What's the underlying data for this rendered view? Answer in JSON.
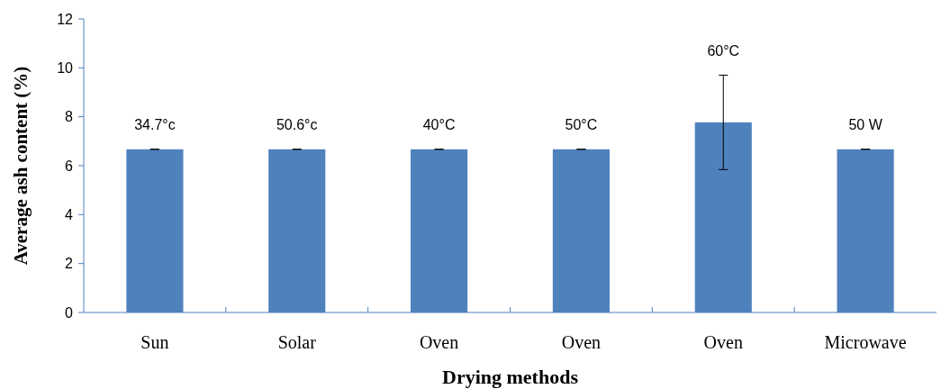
{
  "chart_data": {
    "type": "bar",
    "xlabel": "Drying methods",
    "ylabel": "Average ash content (%)",
    "categories": [
      "Sun",
      "Solar",
      "Oven",
      "Oven",
      "Oven",
      "Microwave"
    ],
    "values": [
      6.67,
      6.67,
      6.67,
      6.67,
      7.77,
      6.67
    ],
    "errors": [
      0,
      0,
      0,
      0,
      1.93,
      0
    ],
    "color": "#4f81bd",
    "ylim": [
      0,
      12
    ],
    "yticks": [
      0,
      2,
      4,
      6,
      8,
      10,
      12
    ],
    "grid": false,
    "annotations": [
      "34.7°c",
      "50.6°c",
      "40°C",
      "50°C",
      "60°C",
      "50 W"
    ]
  }
}
